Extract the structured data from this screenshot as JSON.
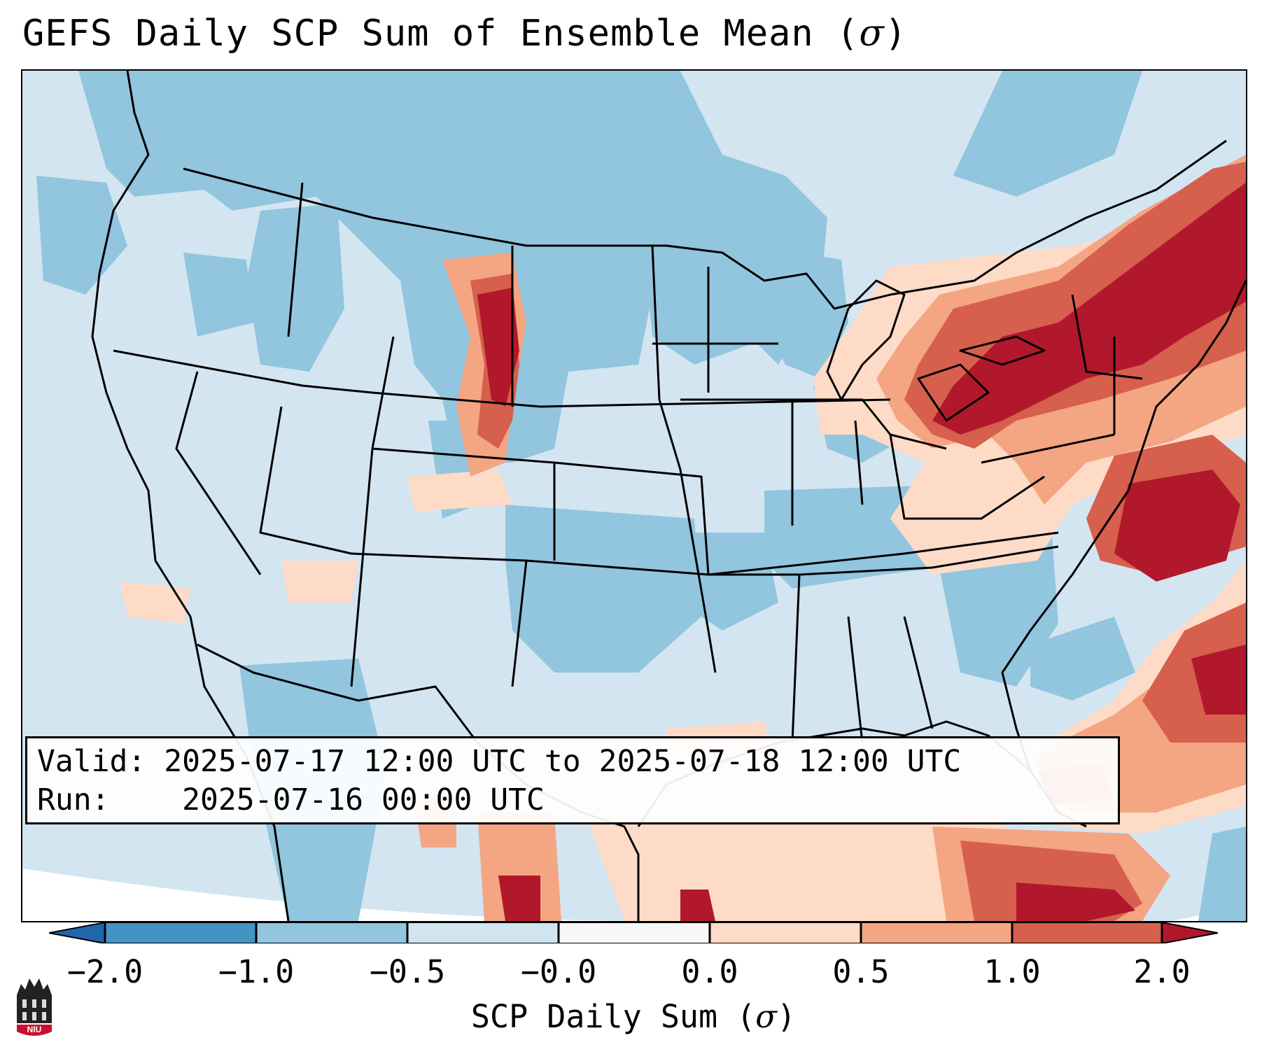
{
  "title": {
    "text": "GEFS Daily SCP Sum of Ensemble Mean (",
    "symbol": "σ",
    "close": ")"
  },
  "info": {
    "valid_label": "Valid:",
    "valid_value": "2025-07-17 12:00 UTC to 2025-07-18 12:00 UTC",
    "run_label": "Run:",
    "run_value": "2025-07-16 00:00 UTC"
  },
  "colorbar": {
    "label_text": "SCP Daily Sum (",
    "label_symbol": "σ",
    "label_close": ")",
    "ticks": [
      "−2.0",
      "−1.0",
      "−0.5",
      "−0.0",
      "0.0",
      "0.5",
      "1.0",
      "2.0"
    ],
    "colors": [
      "#2166ac",
      "#4393c3",
      "#92c5de",
      "#d1e5f0",
      "#f7f7f7",
      "#fddbc7",
      "#f4a582",
      "#d6604d",
      "#b2182b"
    ]
  },
  "map": {
    "background_color": "#d3e5f1",
    "lower_color": "#92c5de",
    "light_positive_color": "#fddbc7",
    "mid_positive_color": "#f4a582",
    "high_positive_color": "#d6604d",
    "extreme_positive_color": "#b2182b"
  },
  "logo": {
    "text": "NIU"
  }
}
